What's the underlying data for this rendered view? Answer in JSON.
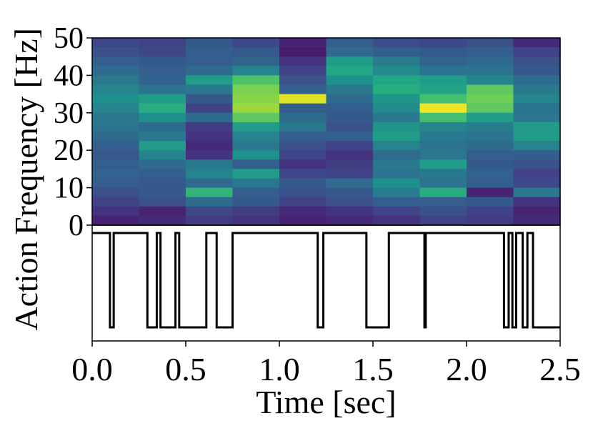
{
  "chart_data": [
    {
      "type": "heatmap",
      "ylabel": "Frequency [Hz]",
      "ylim": [
        0,
        50
      ],
      "xlim": [
        0,
        2.5
      ],
      "yticks": [
        "0",
        "10",
        "20",
        "30",
        "40",
        "50"
      ],
      "colormap": "viridis",
      "columns": 10,
      "rows": 20,
      "intensity": [
        [
          0.22,
          0.2,
          0.28,
          0.22,
          0.1,
          0.3,
          0.24,
          0.22,
          0.25,
          0.12
        ],
        [
          0.25,
          0.22,
          0.3,
          0.28,
          0.08,
          0.35,
          0.3,
          0.28,
          0.3,
          0.2
        ],
        [
          0.3,
          0.28,
          0.3,
          0.32,
          0.15,
          0.55,
          0.42,
          0.32,
          0.35,
          0.25
        ],
        [
          0.35,
          0.3,
          0.35,
          0.45,
          0.2,
          0.6,
          0.48,
          0.38,
          0.38,
          0.28
        ],
        [
          0.4,
          0.32,
          0.55,
          0.72,
          0.25,
          0.5,
          0.6,
          0.55,
          0.45,
          0.35
        ],
        [
          0.45,
          0.38,
          0.4,
          0.8,
          0.3,
          0.4,
          0.62,
          0.58,
          0.75,
          0.4
        ],
        [
          0.5,
          0.55,
          0.28,
          0.82,
          0.95,
          0.35,
          0.52,
          0.7,
          0.78,
          0.45
        ],
        [
          0.45,
          0.62,
          0.2,
          0.85,
          0.3,
          0.3,
          0.48,
          0.98,
          0.75,
          0.38
        ],
        [
          0.4,
          0.5,
          0.35,
          0.75,
          0.35,
          0.28,
          0.4,
          0.7,
          0.55,
          0.4
        ],
        [
          0.38,
          0.35,
          0.18,
          0.55,
          0.4,
          0.25,
          0.52,
          0.45,
          0.42,
          0.55
        ],
        [
          0.35,
          0.4,
          0.15,
          0.45,
          0.3,
          0.3,
          0.55,
          0.4,
          0.38,
          0.55
        ],
        [
          0.3,
          0.55,
          0.12,
          0.4,
          0.25,
          0.2,
          0.45,
          0.38,
          0.35,
          0.45
        ],
        [
          0.28,
          0.45,
          0.15,
          0.5,
          0.2,
          0.15,
          0.35,
          0.4,
          0.3,
          0.3
        ],
        [
          0.3,
          0.35,
          0.4,
          0.3,
          0.15,
          0.18,
          0.4,
          0.55,
          0.28,
          0.25
        ],
        [
          0.32,
          0.3,
          0.45,
          0.55,
          0.22,
          0.2,
          0.38,
          0.4,
          0.32,
          0.2
        ],
        [
          0.3,
          0.28,
          0.35,
          0.4,
          0.28,
          0.35,
          0.5,
          0.38,
          0.3,
          0.22
        ],
        [
          0.25,
          0.28,
          0.65,
          0.3,
          0.25,
          0.28,
          0.42,
          0.62,
          0.1,
          0.4
        ],
        [
          0.2,
          0.25,
          0.35,
          0.28,
          0.2,
          0.25,
          0.3,
          0.3,
          0.28,
          0.15
        ],
        [
          0.15,
          0.1,
          0.22,
          0.18,
          0.12,
          0.15,
          0.2,
          0.25,
          0.2,
          0.1
        ],
        [
          0.1,
          0.12,
          0.18,
          0.15,
          0.1,
          0.12,
          0.15,
          0.2,
          0.18,
          0.12
        ]
      ]
    },
    {
      "type": "line",
      "ylabel": "Action",
      "xlabel": "Time [sec]",
      "xlim": [
        0,
        2.5
      ],
      "xticks": [
        "0.0",
        "0.5",
        "1.0",
        "1.5",
        "2.0",
        "2.5"
      ],
      "levels": [
        "high",
        "low"
      ],
      "step_x": [
        0,
        0.095,
        0.115,
        0.295,
        0.345,
        0.365,
        0.445,
        0.465,
        0.61,
        0.665,
        0.75,
        1.205,
        1.235,
        1.465,
        1.585,
        1.775,
        1.782,
        2.2,
        2.225,
        2.245,
        2.265,
        2.3,
        2.325,
        2.355,
        2.37,
        2.5
      ],
      "step_levels": [
        1,
        0,
        1,
        0,
        1,
        0,
        1,
        0,
        1,
        0,
        1,
        0,
        1,
        0,
        1,
        0,
        1,
        0,
        1,
        0,
        1,
        0,
        1,
        0,
        0
      ],
      "line_color": "#000000"
    }
  ]
}
